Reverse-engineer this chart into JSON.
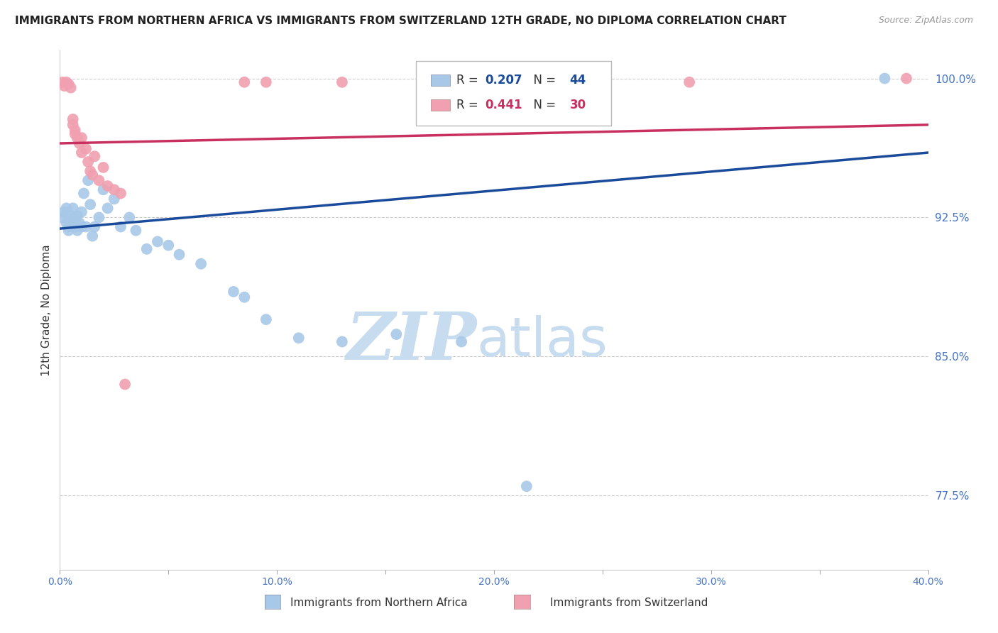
{
  "title": "IMMIGRANTS FROM NORTHERN AFRICA VS IMMIGRANTS FROM SWITZERLAND 12TH GRADE, NO DIPLOMA CORRELATION CHART",
  "source": "Source: ZipAtlas.com",
  "xlabel_blue": "Immigrants from Northern Africa",
  "xlabel_pink": "Immigrants from Switzerland",
  "ylabel": "12th Grade, No Diploma",
  "xlim": [
    0.0,
    0.4
  ],
  "ylim": [
    0.735,
    1.015
  ],
  "xticks": [
    0.0,
    0.05,
    0.1,
    0.15,
    0.2,
    0.25,
    0.3,
    0.35,
    0.4
  ],
  "xticklabels": [
    "0.0%",
    "",
    "10.0%",
    "",
    "20.0%",
    "",
    "30.0%",
    "",
    "40.0%"
  ],
  "yticks": [
    0.775,
    0.85,
    0.925,
    1.0
  ],
  "yticklabels": [
    "77.5%",
    "85.0%",
    "92.5%",
    "100.0%"
  ],
  "R_blue": 0.207,
  "N_blue": 44,
  "R_pink": 0.441,
  "N_pink": 30,
  "blue_color": "#A8C8E8",
  "pink_color": "#F0A0B0",
  "blue_line_color": "#1A4A9A",
  "pink_line_color": "#C83060",
  "blue_scatter": [
    [
      0.001,
      0.925
    ],
    [
      0.002,
      0.928
    ],
    [
      0.003,
      0.922
    ],
    [
      0.003,
      0.93
    ],
    [
      0.004,
      0.92
    ],
    [
      0.004,
      0.918
    ],
    [
      0.005,
      0.924
    ],
    [
      0.005,
      0.926
    ],
    [
      0.006,
      0.922
    ],
    [
      0.006,
      0.93
    ],
    [
      0.007,
      0.925
    ],
    [
      0.007,
      0.92
    ],
    [
      0.008,
      0.926
    ],
    [
      0.008,
      0.918
    ],
    [
      0.009,
      0.922
    ],
    [
      0.01,
      0.928
    ],
    [
      0.01,
      0.92
    ],
    [
      0.011,
      0.938
    ],
    [
      0.012,
      0.92
    ],
    [
      0.013,
      0.945
    ],
    [
      0.014,
      0.932
    ],
    [
      0.015,
      0.915
    ],
    [
      0.016,
      0.92
    ],
    [
      0.018,
      0.925
    ],
    [
      0.02,
      0.94
    ],
    [
      0.022,
      0.93
    ],
    [
      0.025,
      0.935
    ],
    [
      0.028,
      0.92
    ],
    [
      0.032,
      0.925
    ],
    [
      0.035,
      0.918
    ],
    [
      0.04,
      0.908
    ],
    [
      0.045,
      0.912
    ],
    [
      0.05,
      0.91
    ],
    [
      0.055,
      0.905
    ],
    [
      0.065,
      0.9
    ],
    [
      0.08,
      0.885
    ],
    [
      0.085,
      0.882
    ],
    [
      0.095,
      0.87
    ],
    [
      0.11,
      0.86
    ],
    [
      0.13,
      0.858
    ],
    [
      0.155,
      0.862
    ],
    [
      0.185,
      0.858
    ],
    [
      0.215,
      0.78
    ],
    [
      0.38,
      1.0
    ]
  ],
  "pink_scatter": [
    [
      0.001,
      0.998
    ],
    [
      0.002,
      0.996
    ],
    [
      0.003,
      0.998
    ],
    [
      0.004,
      0.997
    ],
    [
      0.005,
      0.995
    ],
    [
      0.006,
      0.975
    ],
    [
      0.006,
      0.978
    ],
    [
      0.007,
      0.97
    ],
    [
      0.007,
      0.972
    ],
    [
      0.008,
      0.968
    ],
    [
      0.009,
      0.965
    ],
    [
      0.01,
      0.96
    ],
    [
      0.01,
      0.968
    ],
    [
      0.012,
      0.962
    ],
    [
      0.013,
      0.955
    ],
    [
      0.014,
      0.95
    ],
    [
      0.015,
      0.948
    ],
    [
      0.016,
      0.958
    ],
    [
      0.018,
      0.945
    ],
    [
      0.02,
      0.952
    ],
    [
      0.022,
      0.942
    ],
    [
      0.025,
      0.94
    ],
    [
      0.028,
      0.938
    ],
    [
      0.03,
      0.835
    ],
    [
      0.085,
      0.998
    ],
    [
      0.095,
      0.998
    ],
    [
      0.13,
      0.998
    ],
    [
      0.2,
      0.998
    ],
    [
      0.29,
      0.998
    ],
    [
      0.39,
      1.0
    ]
  ],
  "blue_trendline": [
    [
      0.0,
      0.919
    ],
    [
      0.4,
      0.96
    ]
  ],
  "pink_trendline": [
    [
      0.0,
      0.965
    ],
    [
      0.4,
      0.975
    ]
  ],
  "legend_box_color": "#FFFFFF",
  "legend_box_edge": "#CCCCCC",
  "watermark_zip": "ZIP",
  "watermark_atlas": "atlas",
  "watermark_color_zip": "#C8DCF0",
  "watermark_color_atlas": "#C8DCF0",
  "title_fontsize": 11,
  "axis_label_color": "#333333",
  "tick_label_color": "#4472C4",
  "grid_color": "#CCCCCC",
  "grid_style": "--"
}
